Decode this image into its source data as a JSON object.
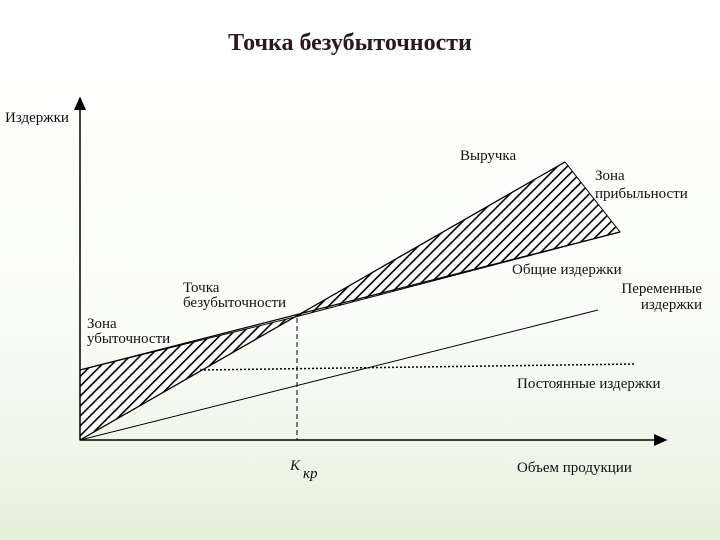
{
  "title": "Точка безубыточности",
  "y_axis_label": "Издержки",
  "x_axis_label": "Объем продукции",
  "revenue_label": "Выручка",
  "profit_zone_label": [
    "Зона",
    "прибыльности"
  ],
  "total_costs_label": "Общие издержки",
  "variable_costs_label": [
    "Переменные",
    "издержки"
  ],
  "break_even_label": [
    "Точка",
    "безубыточности"
  ],
  "loss_zone_label": [
    "Зона",
    "убыточности"
  ],
  "fixed_costs_label": "Постоянные издержки",
  "critical_volume_label": {
    "main": "К",
    "sub": "кр"
  }
}
